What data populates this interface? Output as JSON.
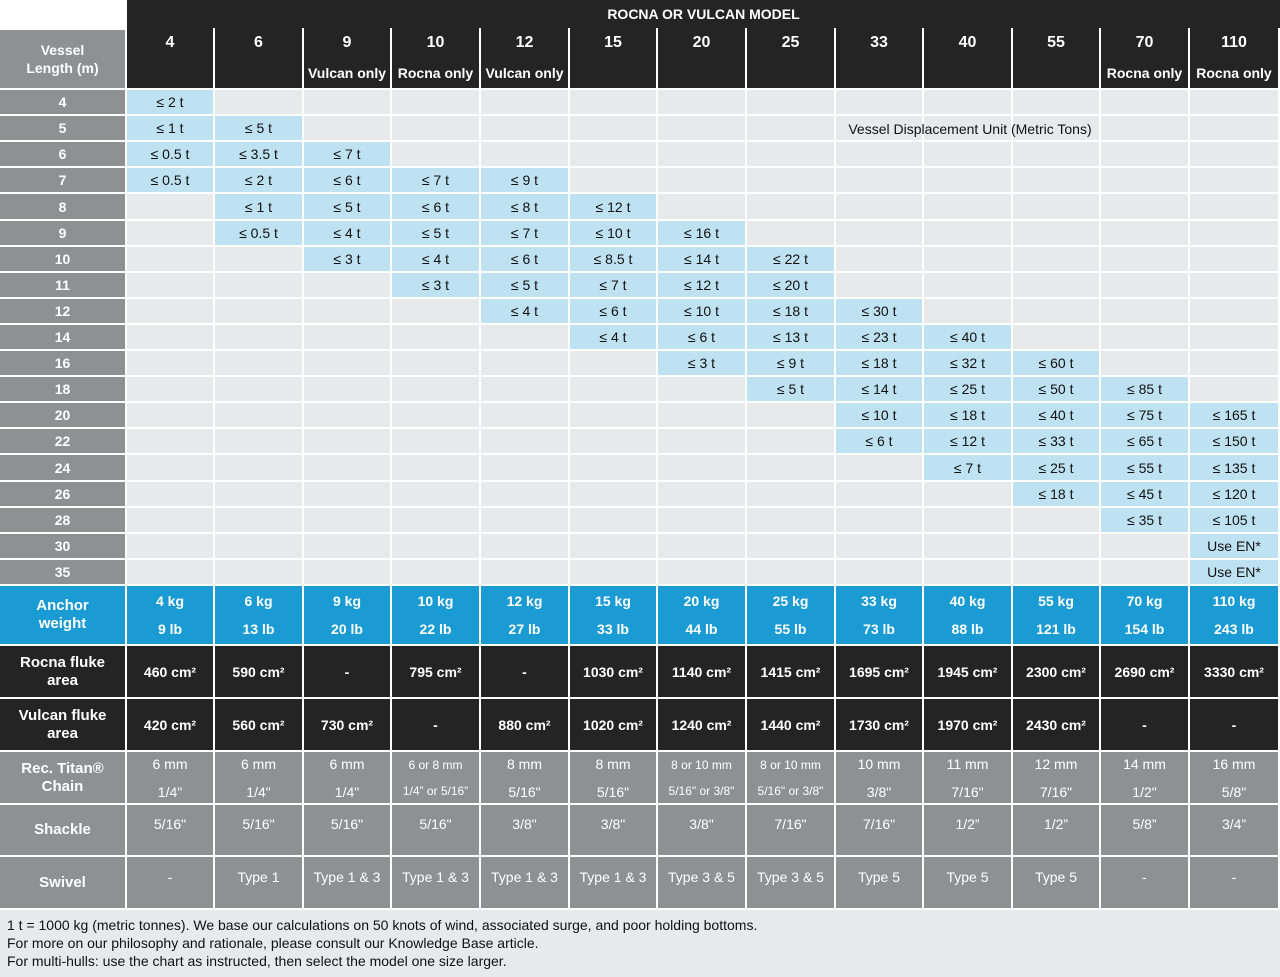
{
  "title": "ROCNA OR VULCAN MODEL",
  "vessel_length_label": [
    "Vessel",
    "Length (m)"
  ],
  "displacement_unit_note": "Vessel Displacement Unit (Metric Tons)",
  "models": [
    {
      "size": "4",
      "note": ""
    },
    {
      "size": "6",
      "note": ""
    },
    {
      "size": "9",
      "note": "Vulcan only"
    },
    {
      "size": "10",
      "note": "Rocna only"
    },
    {
      "size": "12",
      "note": "Vulcan only"
    },
    {
      "size": "15",
      "note": ""
    },
    {
      "size": "20",
      "note": ""
    },
    {
      "size": "25",
      "note": ""
    },
    {
      "size": "33",
      "note": ""
    },
    {
      "size": "40",
      "note": ""
    },
    {
      "size": "55",
      "note": ""
    },
    {
      "size": "70",
      "note": "Rocna only"
    },
    {
      "size": "110",
      "note": "Rocna only"
    }
  ],
  "vessel_lengths": [
    "4",
    "5",
    "6",
    "7",
    "8",
    "9",
    "10",
    "11",
    "12",
    "14",
    "16",
    "18",
    "20",
    "22",
    "24",
    "26",
    "28",
    "30",
    "35"
  ],
  "displacement": [
    [
      "≤ 2 t",
      "",
      "",
      "",
      "",
      "",
      "",
      "",
      "",
      "",
      "",
      "",
      ""
    ],
    [
      "≤ 1 t",
      "≤ 5 t",
      "",
      "",
      "",
      "",
      "",
      "",
      "",
      "",
      "",
      "",
      ""
    ],
    [
      "≤ 0.5 t",
      "≤ 3.5 t",
      "≤ 7 t",
      "",
      "",
      "",
      "",
      "",
      "",
      "",
      "",
      "",
      ""
    ],
    [
      "≤ 0.5 t",
      "≤ 2 t",
      "≤ 6 t",
      "≤ 7 t",
      "≤ 9 t",
      "",
      "",
      "",
      "",
      "",
      "",
      "",
      ""
    ],
    [
      "",
      "≤ 1 t",
      "≤ 5 t",
      "≤ 6 t",
      "≤ 8 t",
      "≤ 12 t",
      "",
      "",
      "",
      "",
      "",
      "",
      ""
    ],
    [
      "",
      "≤ 0.5 t",
      "≤ 4 t",
      "≤ 5 t",
      "≤ 7 t",
      "≤ 10 t",
      "≤ 16 t",
      "",
      "",
      "",
      "",
      "",
      ""
    ],
    [
      "",
      "",
      "≤ 3 t",
      "≤ 4 t",
      "≤ 6 t",
      "≤ 8.5 t",
      "≤ 14 t",
      "≤ 22 t",
      "",
      "",
      "",
      "",
      ""
    ],
    [
      "",
      "",
      "",
      "≤ 3 t",
      "≤ 5 t",
      "≤ 7 t",
      "≤ 12 t",
      "≤ 20 t",
      "",
      "",
      "",
      "",
      ""
    ],
    [
      "",
      "",
      "",
      "",
      "≤ 4 t",
      "≤ 6 t",
      "≤ 10 t",
      "≤ 18 t",
      "≤ 30 t",
      "",
      "",
      "",
      ""
    ],
    [
      "",
      "",
      "",
      "",
      "",
      "≤ 4 t",
      "≤ 6 t",
      "≤ 13 t",
      "≤ 23 t",
      "≤ 40 t",
      "",
      "",
      ""
    ],
    [
      "",
      "",
      "",
      "",
      "",
      "",
      "≤ 3 t",
      "≤ 9 t",
      "≤ 18 t",
      "≤ 32 t",
      "≤ 60 t",
      "",
      ""
    ],
    [
      "",
      "",
      "",
      "",
      "",
      "",
      "",
      "≤ 5 t",
      "≤ 14 t",
      "≤ 25 t",
      "≤ 50 t",
      "≤ 85 t",
      ""
    ],
    [
      "",
      "",
      "",
      "",
      "",
      "",
      "",
      "",
      "≤ 10 t",
      "≤ 18 t",
      "≤ 40 t",
      "≤ 75 t",
      "≤ 165 t"
    ],
    [
      "",
      "",
      "",
      "",
      "",
      "",
      "",
      "",
      "≤ 6 t",
      "≤ 12 t",
      "≤ 33 t",
      "≤ 65 t",
      "≤ 150 t"
    ],
    [
      "",
      "",
      "",
      "",
      "",
      "",
      "",
      "",
      "",
      "≤ 7 t",
      "≤ 25 t",
      "≤ 55 t",
      "≤ 135 t"
    ],
    [
      "",
      "",
      "",
      "",
      "",
      "",
      "",
      "",
      "",
      "",
      "≤ 18 t",
      "≤ 45 t",
      "≤ 120 t"
    ],
    [
      "",
      "",
      "",
      "",
      "",
      "",
      "",
      "",
      "",
      "",
      "",
      "≤ 35 t",
      "≤ 105 t"
    ],
    [
      "",
      "",
      "",
      "",
      "",
      "",
      "",
      "",
      "",
      "",
      "",
      "",
      "Use EN*"
    ],
    [
      "",
      "",
      "",
      "",
      "",
      "",
      "",
      "",
      "",
      "",
      "",
      "",
      "Use EN*"
    ]
  ],
  "anchor_weight": {
    "label": [
      "Anchor",
      "weight"
    ],
    "values": [
      [
        "4 kg",
        "9 lb"
      ],
      [
        "6 kg",
        "13 lb"
      ],
      [
        "9 kg",
        "20 lb"
      ],
      [
        "10 kg",
        "22 lb"
      ],
      [
        "12 kg",
        "27 lb"
      ],
      [
        "15 kg",
        "33 lb"
      ],
      [
        "20 kg",
        "44 lb"
      ],
      [
        "25 kg",
        "55 lb"
      ],
      [
        "33 kg",
        "73 lb"
      ],
      [
        "40 kg",
        "88 lb"
      ],
      [
        "55 kg",
        "121 lb"
      ],
      [
        "70 kg",
        "154 lb"
      ],
      [
        "110 kg",
        "243 lb"
      ]
    ]
  },
  "rocna_fluke_area": {
    "label": [
      "Rocna fluke",
      "area"
    ],
    "values": [
      "460 cm²",
      "590 cm²",
      "-",
      "795 cm²",
      "-",
      "1030 cm²",
      "1140 cm²",
      "1415 cm²",
      "1695 cm²",
      "1945 cm²",
      "2300 cm²",
      "2690 cm²",
      "3330 cm²"
    ]
  },
  "vulcan_fluke_area": {
    "label": [
      "Vulcan fluke",
      "area"
    ],
    "values": [
      "420 cm²",
      "560 cm²",
      "730 cm²",
      "-",
      "880 cm²",
      "1020 cm²",
      "1240 cm²",
      "1440 cm²",
      "1730 cm²",
      "1970 cm²",
      "2430 cm²",
      "-",
      "-"
    ]
  },
  "chain": {
    "label": [
      "Rec. Titan®",
      "Chain"
    ],
    "values": [
      [
        "6 mm",
        "1/4\""
      ],
      [
        "6 mm",
        "1/4\""
      ],
      [
        "6 mm",
        "1/4\""
      ],
      [
        "6 or 8 mm",
        "1/4” or 5/16”"
      ],
      [
        "8 mm",
        "5/16\""
      ],
      [
        "8 mm",
        "5/16\""
      ],
      [
        "8 or 10 mm",
        "5/16\" or 3/8\""
      ],
      [
        "8 or 10 mm",
        "5/16\" or 3/8\""
      ],
      [
        "10 mm",
        "3/8\""
      ],
      [
        "11 mm",
        "7/16\""
      ],
      [
        "12 mm",
        "7/16\""
      ],
      [
        "14 mm",
        "1/2\""
      ],
      [
        "16 mm",
        "5/8\""
      ]
    ]
  },
  "shackle": {
    "label": "Shackle",
    "values": [
      "5/16\"",
      "5/16\"",
      "5/16\"",
      "5/16\"",
      "3/8\"",
      "3/8\"",
      "3/8\"",
      "7/16\"",
      "7/16\"",
      "1/2”",
      "1/2”",
      "5/8”",
      "3/4”"
    ]
  },
  "swivel": {
    "label": "Swivel",
    "values": [
      "-",
      "Type 1",
      "Type 1 & 3",
      "Type 1 & 3",
      "Type 1 & 3",
      "Type 1 & 3",
      "Type 3 & 5",
      "Type 3 & 5",
      "Type 5",
      "Type 5",
      "Type 5",
      "-",
      "-"
    ]
  },
  "footnotes": [
    "1 t = 1000 kg (metric tonnes). We base our calculations on 50 knots of wind, associated surge, and poor holding bottoms.",
    "For more on our philosophy and rationale, please consult our Knowledge Base article.",
    "For multi-hulls: use the chart as instructed, then select the model one size larger."
  ],
  "colors": {
    "header_dark": "#242424",
    "sidebar_grey": "#8f9092",
    "body_grey": "#e8e9ea",
    "highlight_blue": "#bfe2f2",
    "anchor_row_blue": "#1a9bd3"
  }
}
